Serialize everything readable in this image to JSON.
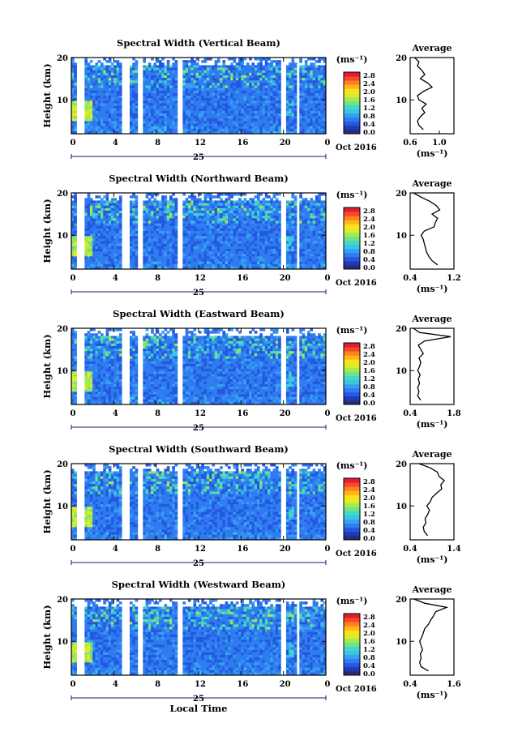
{
  "figure": {
    "date_label": "Oct 2016",
    "day_label": "25",
    "unit_label": "(ms⁻¹)",
    "bottom_xlabel": "Local Time",
    "ylabel": "Height (km)",
    "average_title": "Average",
    "avg_xlabel": "(ms⁻¹)"
  },
  "colorbar": {
    "ticks": [
      "2.8",
      "2.4",
      "2.0",
      "1.6",
      "1.2",
      "0.8",
      "0.4",
      "0.0"
    ],
    "colors": [
      "#2a2a7a",
      "#1f3ab8",
      "#2458e0",
      "#2f7cf0",
      "#38a0f0",
      "#3cc4e6",
      "#44d8c0",
      "#6ee28a",
      "#a8ea4c",
      "#dcec2c",
      "#ffe018",
      "#ffb41a",
      "#ff8020",
      "#f8482a",
      "#e01e30"
    ]
  },
  "chart_data": [
    {
      "type": "heatmap",
      "title": "Spectral Width (Vertical Beam)",
      "xlabel": "",
      "ylabel": "Height (km)",
      "xticks": [
        "0",
        "4",
        "8",
        "12",
        "16",
        "20",
        "0"
      ],
      "yticks": [
        "20",
        "10"
      ],
      "xlim": [
        0,
        24
      ],
      "ylim": [
        2,
        20
      ],
      "average_profile": {
        "title": "Average",
        "xticks": [
          "0.6",
          "1.0"
        ],
        "xlim": [
          0.6,
          1.2
        ],
        "height": [
          3,
          4,
          5,
          6,
          7,
          8,
          9,
          10,
          11,
          12,
          13,
          14,
          15,
          16,
          17,
          18,
          19,
          20
        ],
        "value": [
          0.78,
          0.72,
          0.7,
          0.74,
          0.8,
          0.76,
          0.82,
          0.72,
          0.7,
          0.78,
          0.9,
          0.84,
          0.74,
          0.8,
          0.76,
          0.7,
          0.72,
          0.66
        ]
      }
    },
    {
      "type": "heatmap",
      "title": "Spectral Width (Northward Beam)",
      "xlabel": "",
      "ylabel": "Height (km)",
      "xticks": [
        "0",
        "4",
        "8",
        "12",
        "16",
        "20",
        "0"
      ],
      "yticks": [
        "20",
        "10"
      ],
      "xlim": [
        0,
        24
      ],
      "ylim": [
        2,
        20
      ],
      "average_profile": {
        "title": "Average",
        "xticks": [
          "0.4",
          "1.2"
        ],
        "xlim": [
          0.4,
          1.2
        ],
        "height": [
          3,
          4,
          5,
          6,
          7,
          8,
          9,
          10,
          11,
          12,
          13,
          14,
          15,
          16,
          17,
          18,
          19,
          20
        ],
        "value": [
          0.9,
          0.8,
          0.74,
          0.7,
          0.68,
          0.66,
          0.64,
          0.6,
          0.66,
          0.84,
          0.86,
          0.9,
          0.8,
          0.94,
          0.88,
          0.76,
          0.6,
          0.46
        ]
      }
    },
    {
      "type": "heatmap",
      "title": "Spectral Width (Eastward Beam)",
      "xlabel": "",
      "ylabel": "Height (km)",
      "xticks": [
        "0",
        "4",
        "8",
        "12",
        "16",
        "20",
        "0"
      ],
      "yticks": [
        "20",
        "10"
      ],
      "xlim": [
        0,
        24
      ],
      "ylim": [
        2,
        20
      ],
      "average_profile": {
        "title": "Average",
        "xticks": [
          "0.4",
          "1.8"
        ],
        "xlim": [
          0.4,
          1.8
        ],
        "height": [
          3,
          4,
          5,
          6,
          7,
          8,
          9,
          10,
          11,
          12,
          13,
          14,
          15,
          16,
          17,
          18,
          19,
          20
        ],
        "value": [
          0.74,
          0.64,
          0.68,
          0.64,
          0.7,
          0.66,
          0.72,
          0.64,
          0.7,
          0.74,
          0.68,
          0.82,
          0.74,
          0.66,
          0.86,
          1.7,
          0.7,
          0.5
        ]
      }
    },
    {
      "type": "heatmap",
      "title": "Spectral Width (Southward Beam)",
      "xlabel": "",
      "ylabel": "Height (km)",
      "xticks": [
        "0",
        "4",
        "8",
        "12",
        "16",
        "20",
        "0"
      ],
      "yticks": [
        "20",
        "10"
      ],
      "xlim": [
        0,
        24
      ],
      "ylim": [
        2,
        20
      ],
      "average_profile": {
        "title": "Average",
        "xticks": [
          "0.4",
          "1.4"
        ],
        "xlim": [
          0.4,
          1.4
        ],
        "height": [
          3,
          4,
          5,
          6,
          7,
          8,
          9,
          10,
          11,
          12,
          13,
          14,
          15,
          16,
          17,
          18,
          19,
          20
        ],
        "value": [
          0.8,
          0.72,
          0.7,
          0.76,
          0.74,
          0.8,
          0.84,
          0.78,
          0.86,
          0.9,
          1.0,
          1.12,
          1.1,
          1.18,
          1.06,
          1.02,
          0.86,
          0.6
        ]
      }
    },
    {
      "type": "heatmap",
      "title": "Spectral Width (Westward Beam)",
      "xlabel": "Local Time",
      "ylabel": "Height (km)",
      "xticks": [
        "0",
        "4",
        "8",
        "12",
        "16",
        "20",
        "0"
      ],
      "yticks": [
        "20",
        "10"
      ],
      "xlim": [
        0,
        24
      ],
      "ylim": [
        2,
        20
      ],
      "average_profile": {
        "title": "Average",
        "xticks": [
          "0.4",
          "1.6"
        ],
        "xlim": [
          0.4,
          1.6
        ],
        "height": [
          3,
          4,
          5,
          6,
          7,
          8,
          9,
          10,
          11,
          12,
          13,
          14,
          15,
          16,
          17,
          18,
          19,
          20
        ],
        "value": [
          0.9,
          0.7,
          0.66,
          0.7,
          0.68,
          0.74,
          0.7,
          0.66,
          0.72,
          0.76,
          0.8,
          0.9,
          0.96,
          1.04,
          1.1,
          1.4,
          0.8,
          0.5
        ]
      }
    }
  ]
}
